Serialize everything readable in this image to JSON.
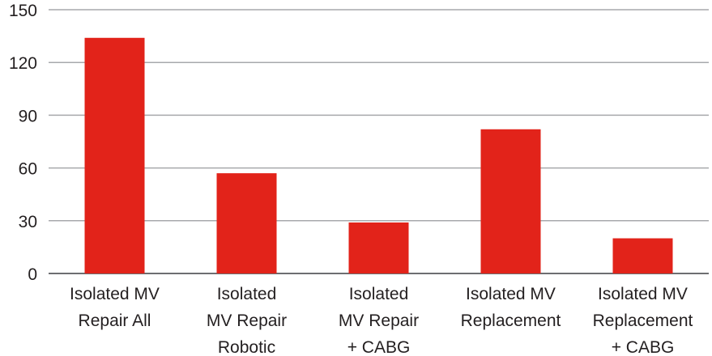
{
  "chart_data": {
    "type": "bar",
    "categories": [
      [
        "Isolated MV",
        "Repair All"
      ],
      [
        "Isolated",
        "MV Repair",
        "Robotic"
      ],
      [
        "Isolated",
        "MV Repair",
        "+ CABG"
      ],
      [
        "Isolated MV",
        "Replacement"
      ],
      [
        "Isolated MV",
        "Replacement",
        "+ CABG"
      ]
    ],
    "values": [
      134,
      57,
      29,
      82,
      20
    ],
    "color": "#e2231a",
    "ylim": [
      0,
      150
    ],
    "yticks": [
      0,
      30,
      60,
      90,
      120,
      150
    ],
    "grid": true
  }
}
